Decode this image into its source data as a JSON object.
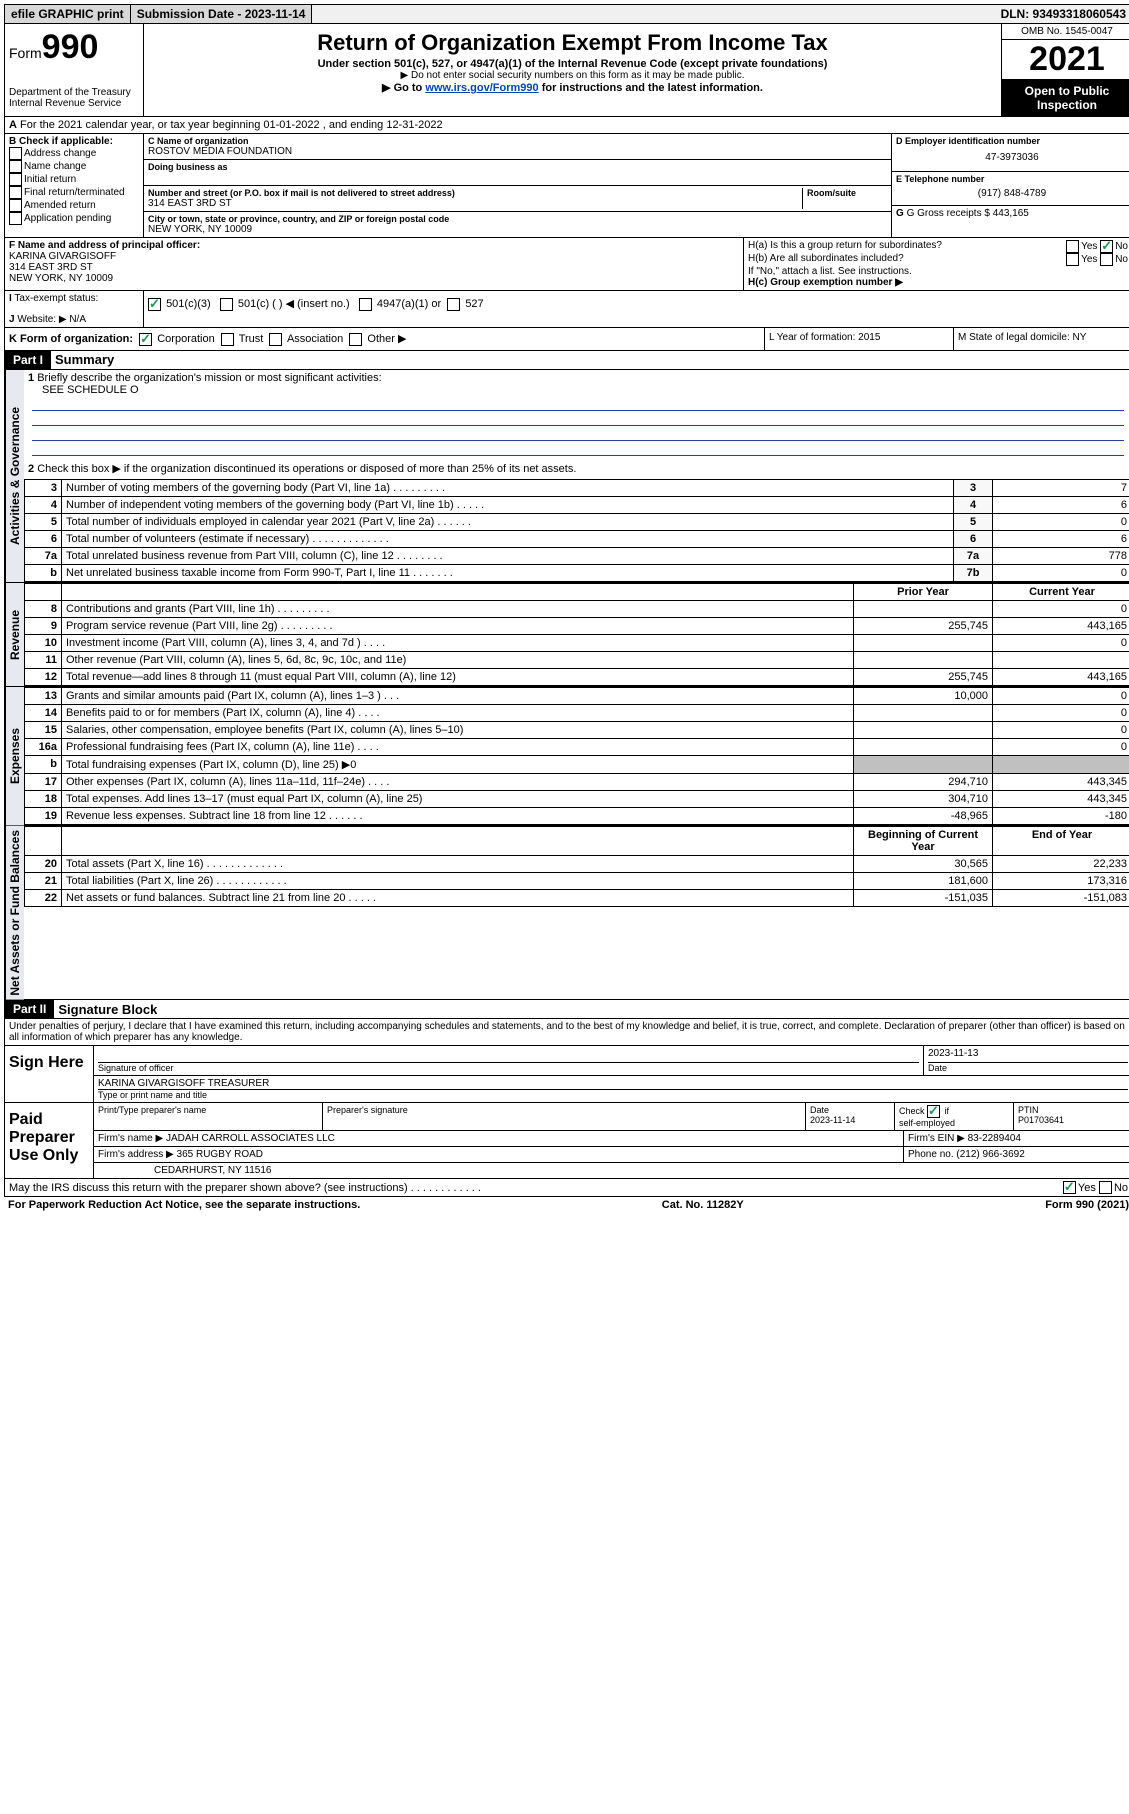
{
  "topbar": {
    "efile": "efile GRAPHIC print",
    "submission_label": "Submission Date - 2023-11-14",
    "dln": "DLN: 93493318060543"
  },
  "header": {
    "form_word": "Form",
    "form_num": "990",
    "dept": "Department of the Treasury",
    "irs": "Internal Revenue Service",
    "title": "Return of Organization Exempt From Income Tax",
    "sub1": "Under section 501(c), 527, or 4947(a)(1) of the Internal Revenue Code (except private foundations)",
    "sub2": "▶ Do not enter social security numbers on this form as it may be made public.",
    "sub3_pre": "▶ Go to ",
    "sub3_link": "www.irs.gov/Form990",
    "sub3_post": " for instructions and the latest information.",
    "omb": "OMB No. 1545-0047",
    "year": "2021",
    "open": "Open to Public Inspection"
  },
  "sectionA": {
    "line": "For the 2021 calendar year, or tax year beginning 01-01-2022   , and ending 12-31-2022",
    "b_label": "B Check if applicable:",
    "b_opts": [
      "Address change",
      "Name change",
      "Initial return",
      "Final return/terminated",
      "Amended return",
      "Application pending"
    ],
    "c_name_label": "C Name of organization",
    "c_name": "ROSTOV MEDIA FOUNDATION",
    "dba_label": "Doing business as",
    "addr_label": "Number and street (or P.O. box if mail is not delivered to street address)",
    "room_label": "Room/suite",
    "addr": "314 EAST 3RD ST",
    "city_label": "City or town, state or province, country, and ZIP or foreign postal code",
    "city": "NEW YORK, NY  10009",
    "d_label": "D Employer identification number",
    "d_val": "47-3973036",
    "e_label": "E Telephone number",
    "e_val": "(917) 848-4789",
    "g_label": "G Gross receipts $ 443,165",
    "f_label": "F  Name and address of principal officer:",
    "f_name": "KARINA GIVARGISOFF",
    "f_addr1": "314 EAST 3RD ST",
    "f_addr2": "NEW YORK, NY  10009",
    "ha_label": "H(a)  Is this a group return for subordinates?",
    "hb_label": "H(b)  Are all subordinates included?",
    "h_note": "If \"No,\" attach a list. See instructions.",
    "hc_label": "H(c)  Group exemption number ▶",
    "yes": "Yes",
    "no": "No"
  },
  "statusRow": {
    "i_label": "Tax-exempt status:",
    "opt1": "501(c)(3)",
    "opt2": "501(c) (  ) ◀ (insert no.)",
    "opt3": "4947(a)(1) or",
    "opt4": "527",
    "j_label": "Website: ▶",
    "j_val": "N/A"
  },
  "kRow": {
    "k_label": "K Form of organization:",
    "k_corp": "Corporation",
    "k_trust": "Trust",
    "k_assoc": "Association",
    "k_other": "Other ▶",
    "l_label": "L Year of formation: 2015",
    "m_label": "M State of legal domicile: NY"
  },
  "part1": {
    "header": "Part I",
    "title": "Summary",
    "l1": "Briefly describe the organization's mission or most significant activities:",
    "l1_val": "SEE SCHEDULE O",
    "l2": "Check this box ▶  if the organization discontinued its operations or disposed of more than 25% of its net assets.",
    "rows_top": [
      {
        "n": "3",
        "t": "Number of voting members of the governing body (Part VI, line 1a)  .   .   .   .   .   .   .   .   .",
        "ln": "3",
        "v": "7"
      },
      {
        "n": "4",
        "t": "Number of independent voting members of the governing body (Part VI, line 1b)   .   .   .   .   .",
        "ln": "4",
        "v": "6"
      },
      {
        "n": "5",
        "t": "Total number of individuals employed in calendar year 2021 (Part V, line 2a)   .   .   .   .   .   .",
        "ln": "5",
        "v": "0"
      },
      {
        "n": "6",
        "t": "Total number of volunteers (estimate if necessary)  .   .   .   .   .   .   .   .   .   .   .   .   .",
        "ln": "6",
        "v": "6"
      },
      {
        "n": "7a",
        "t": "Total unrelated business revenue from Part VIII, column (C), line 12  .   .   .   .   .   .   .   .",
        "ln": "7a",
        "v": "778"
      },
      {
        "n": "b",
        "t": "Net unrelated business taxable income from Form 990-T, Part I, line 11  .   .   .   .   .   .   .",
        "ln": "7b",
        "v": "0"
      }
    ],
    "col_prior": "Prior Year",
    "col_current": "Current Year",
    "revenue": [
      {
        "n": "8",
        "t": "Contributions and grants (Part VIII, line 1h)   .   .   .   .   .   .   .   .   .",
        "p": "",
        "c": "0"
      },
      {
        "n": "9",
        "t": "Program service revenue (Part VIII, line 2g)   .   .   .   .   .   .   .   .   .",
        "p": "255,745",
        "c": "443,165"
      },
      {
        "n": "10",
        "t": "Investment income (Part VIII, column (A), lines 3, 4, and 7d )  .   .   .   .",
        "p": "",
        "c": "0"
      },
      {
        "n": "11",
        "t": "Other revenue (Part VIII, column (A), lines 5, 6d, 8c, 9c, 10c, and 11e)",
        "p": "",
        "c": ""
      },
      {
        "n": "12",
        "t": "Total revenue—add lines 8 through 11 (must equal Part VIII, column (A), line 12)",
        "p": "255,745",
        "c": "443,165"
      }
    ],
    "expenses": [
      {
        "n": "13",
        "t": "Grants and similar amounts paid (Part IX, column (A), lines 1–3 )  .   .   .",
        "p": "10,000",
        "c": "0"
      },
      {
        "n": "14",
        "t": "Benefits paid to or for members (Part IX, column (A), line 4)  .   .   .   .",
        "p": "",
        "c": "0"
      },
      {
        "n": "15",
        "t": "Salaries, other compensation, employee benefits (Part IX, column (A), lines 5–10)",
        "p": "",
        "c": "0"
      },
      {
        "n": "16a",
        "t": "Professional fundraising fees (Part IX, column (A), line 11e)  .   .   .   .",
        "p": "",
        "c": "0"
      },
      {
        "n": "b",
        "t": "Total fundraising expenses (Part IX, column (D), line 25) ▶0",
        "p": "shaded",
        "c": "shaded"
      },
      {
        "n": "17",
        "t": "Other expenses (Part IX, column (A), lines 11a–11d, 11f–24e)  .   .   .   .",
        "p": "294,710",
        "c": "443,345"
      },
      {
        "n": "18",
        "t": "Total expenses. Add lines 13–17 (must equal Part IX, column (A), line 25)",
        "p": "304,710",
        "c": "443,345"
      },
      {
        "n": "19",
        "t": "Revenue less expenses. Subtract line 18 from line 12  .   .   .   .   .   .",
        "p": "-48,965",
        "c": "-180"
      }
    ],
    "col_begin": "Beginning of Current Year",
    "col_end": "End of Year",
    "net": [
      {
        "n": "20",
        "t": "Total assets (Part X, line 16)  .   .   .   .   .   .   .   .   .   .   .   .   .",
        "p": "30,565",
        "c": "22,233"
      },
      {
        "n": "21",
        "t": "Total liabilities (Part X, line 26)  .   .   .   .   .   .   .   .   .   .   .   .",
        "p": "181,600",
        "c": "173,316"
      },
      {
        "n": "22",
        "t": "Net assets or fund balances. Subtract line 21 from line 20  .   .   .   .   .",
        "p": "-151,035",
        "c": "-151,083"
      }
    ],
    "tab_gov": "Activities & Governance",
    "tab_rev": "Revenue",
    "tab_exp": "Expenses",
    "tab_net": "Net Assets or Fund Balances"
  },
  "part2": {
    "header": "Part II",
    "title": "Signature Block",
    "perjury": "Under penalties of perjury, I declare that I have examined this return, including accompanying schedules and statements, and to the best of my knowledge and belief, it is true, correct, and complete. Declaration of preparer (other than officer) is based on all information of which preparer has any knowledge.",
    "sign_here": "Sign Here",
    "sig_officer": "Signature of officer",
    "sig_date": "Date",
    "sig_date_val": "2023-11-13",
    "officer_name": "KARINA GIVARGISOFF  TREASURER",
    "type_name": "Type or print name and title",
    "paid_label": "Paid Preparer Use Only",
    "prep_name_label": "Print/Type preparer's name",
    "prep_sig_label": "Preparer's signature",
    "prep_date_label": "Date",
    "prep_date_val": "2023-11-14",
    "self_emp": "Check         if self-employed",
    "ptin_label": "PTIN",
    "ptin_val": "P01703641",
    "firm_name_label": "Firm's name      ▶",
    "firm_name": "JADAH CARROLL ASSOCIATES LLC",
    "firm_ein_label": "Firm's EIN ▶",
    "firm_ein": "83-2289404",
    "firm_addr_label": "Firm's address ▶",
    "firm_addr1": "365 RUGBY ROAD",
    "firm_addr2": "CEDARHURST, NY  11516",
    "phone_label": "Phone no.",
    "phone": "(212) 966-3692",
    "discuss": "May the IRS discuss this return with the preparer shown above? (see instructions)   .   .   .   .   .   .   .   .   .   .   .   ."
  },
  "footer": {
    "pra": "For Paperwork Reduction Act Notice, see the separate instructions.",
    "cat": "Cat. No. 11282Y",
    "form": "Form 990 (2021)"
  }
}
